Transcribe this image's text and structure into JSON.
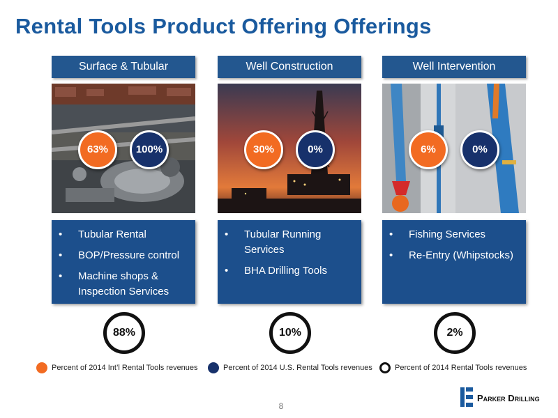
{
  "title": "Rental Tools Product Offering Offerings",
  "columns": [
    {
      "header": "Surface & Tubular",
      "circles": [
        "63%",
        "100%"
      ],
      "items": [
        "Tubular Rental",
        "BOP/Pressure control",
        "Machine shops & Inspection Services"
      ],
      "total": "88%"
    },
    {
      "header": "Well Construction",
      "circles": [
        "30%",
        "0%"
      ],
      "items": [
        "Tubular Running Services",
        "BHA Drilling Tools"
      ],
      "total": "10%"
    },
    {
      "header": "Well Intervention",
      "circles": [
        "6%",
        "0%"
      ],
      "items": [
        "Fishing Services",
        "Re-Entry (Whipstocks)"
      ],
      "total": "2%"
    }
  ],
  "legend": [
    {
      "label": "Percent of 2014 Int’l Rental Tools revenues",
      "color": "#f26b22"
    },
    {
      "label": "Percent of 2014 U.S. Rental Tools revenues",
      "color": "#17316b"
    },
    {
      "label": "Percent of 2014 Rental Tools revenues",
      "color": "#111111"
    }
  ],
  "page_number": "8",
  "logo": {
    "text": "Parker Drilling",
    "icon": "parker-drilling-logo-icon"
  },
  "colors": {
    "title": "#1a5a9e",
    "header": "#23578f",
    "list_box": "#1c4f8c",
    "orange": "#f26b22",
    "navy": "#17316b"
  },
  "bullet": "•"
}
